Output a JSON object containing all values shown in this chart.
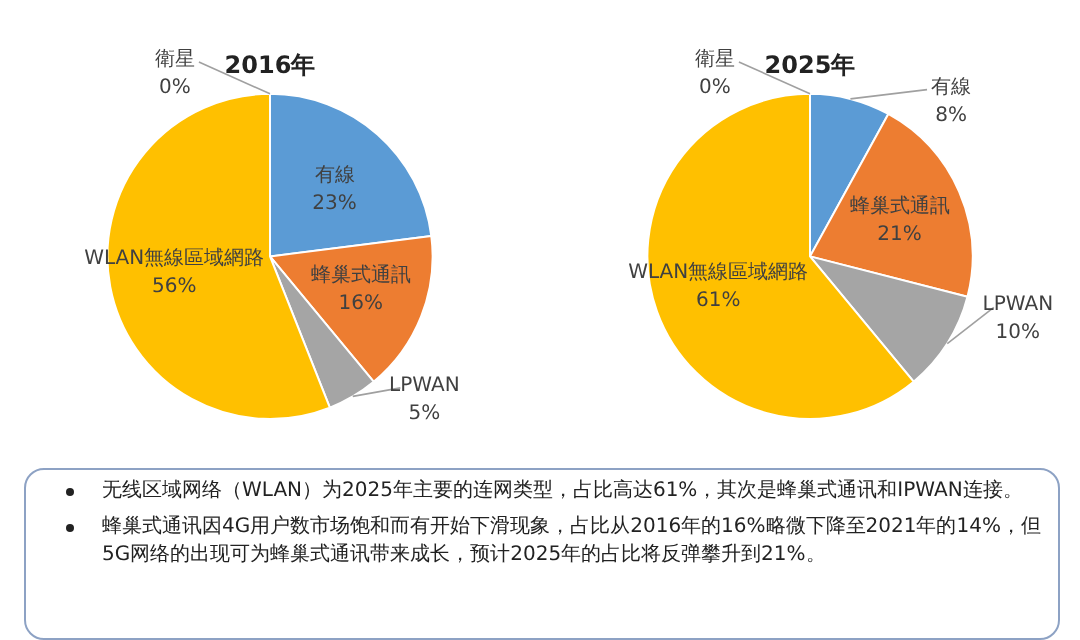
{
  "chart_data": [
    {
      "type": "pie",
      "title": "2016年",
      "categories": [
        "有線",
        "蜂巢式通訊",
        "LPWAN",
        "WLAN無線區域網路",
        "衛星"
      ],
      "values": [
        23,
        16,
        5,
        56,
        0
      ],
      "colors": [
        "#5b9bd5",
        "#ed7d31",
        "#a5a5a5",
        "#ffc000",
        "#4472c4"
      ],
      "value_labels": [
        "23%",
        "16%",
        "5%",
        "56%",
        "0%"
      ]
    },
    {
      "type": "pie",
      "title": "2025年",
      "categories": [
        "有線",
        "蜂巢式通訊",
        "LPWAN",
        "WLAN無線區域網路",
        "衛星"
      ],
      "values": [
        8,
        21,
        10,
        61,
        0
      ],
      "colors": [
        "#5b9bd5",
        "#ed7d31",
        "#a5a5a5",
        "#ffc000",
        "#4472c4"
      ],
      "value_labels": [
        "8%",
        "21%",
        "10%",
        "61%",
        "0%"
      ]
    },
    {
      "type": "other",
      "annotations": [
        "无线区域网络（WLAN）为2025年主要的连网类型，占比高达61%，其次是蜂巢式通讯和IPWAN连接。",
        "蜂巢式通讯因4G用户数市场饱和而有开始下滑现象，占比从2016年的16%略微下降至2021年的14%，但5G网络的出现可为蜂巢式通讯带来成长，预计2025年的占比将反弹攀升到21%。"
      ]
    }
  ]
}
